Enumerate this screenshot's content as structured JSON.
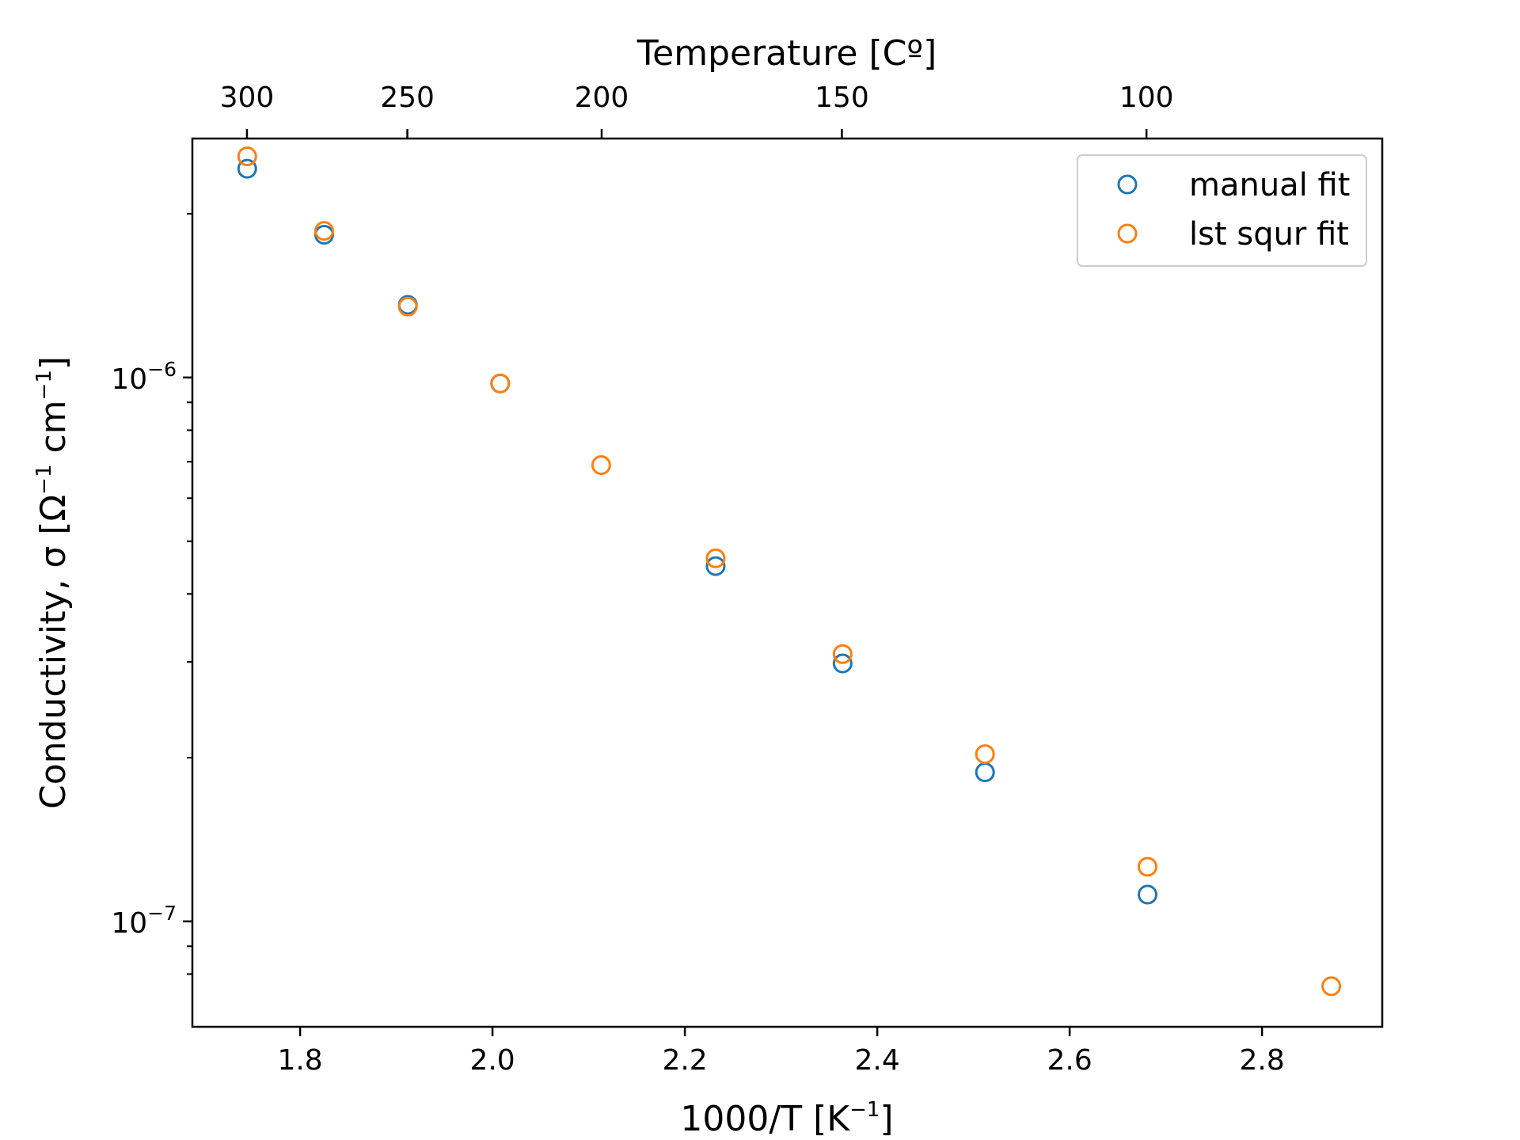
{
  "chart_data": {
    "type": "scatter",
    "xlabel_main": "1000/T  [K",
    "xlabel_sup": "−1",
    "xlabel_tail": "]",
    "ylabel_main": "Conductivity, σ  [Ω",
    "ylabel_sup1": "−1",
    "ylabel_mid": " cm",
    "ylabel_sup2": "−1",
    "ylabel_tail": "]",
    "top_xlabel": "Temperature  [Cº]",
    "xlim": [
      1.688,
      2.925
    ],
    "ylim": [
      6.4e-08,
      2.75e-06
    ],
    "yscale": "log",
    "grid": false,
    "legend_position": "top-right",
    "x_ticks": [
      {
        "value": 1.8,
        "label": "1.8"
      },
      {
        "value": 2.0,
        "label": "2.0"
      },
      {
        "value": 2.2,
        "label": "2.2"
      },
      {
        "value": 2.4,
        "label": "2.4"
      },
      {
        "value": 2.6,
        "label": "2.6"
      },
      {
        "value": 2.8,
        "label": "2.8"
      }
    ],
    "y_ticks_major": [
      {
        "value": 1e-06,
        "base": "10",
        "exp": "−6"
      },
      {
        "value": 1e-07,
        "base": "10",
        "exp": "−7"
      }
    ],
    "y_ticks_minor": [
      8e-08,
      9e-08,
      2e-07,
      3e-07,
      4e-07,
      5e-07,
      6e-07,
      7e-07,
      8e-07,
      9e-07,
      2e-06
    ],
    "top_ticks": [
      {
        "value": 300,
        "label": "300"
      },
      {
        "value": 250,
        "label": "250"
      },
      {
        "value": 200,
        "label": "200"
      },
      {
        "value": 150,
        "label": "150"
      },
      {
        "value": 100,
        "label": "100"
      }
    ],
    "series": [
      {
        "name": "manual fit",
        "color": "#1f77b4",
        "x": [
          1.745,
          1.825,
          1.912,
          2.008,
          2.232,
          2.364,
          2.512,
          2.681
        ],
        "y": [
          2.42e-06,
          1.83e-06,
          1.36e-06,
          9.75e-07,
          4.5e-07,
          2.98e-07,
          1.88e-07,
          1.12e-07
        ]
      },
      {
        "name": "lst squr fit",
        "color": "#ff7f0e",
        "x": [
          1.745,
          1.825,
          1.912,
          2.008,
          2.113,
          2.232,
          2.364,
          2.512,
          2.681,
          2.872
        ],
        "y": [
          2.55e-06,
          1.86e-06,
          1.35e-06,
          9.75e-07,
          6.9e-07,
          4.65e-07,
          3.1e-07,
          2.03e-07,
          1.26e-07,
          7.6e-08
        ]
      }
    ]
  }
}
